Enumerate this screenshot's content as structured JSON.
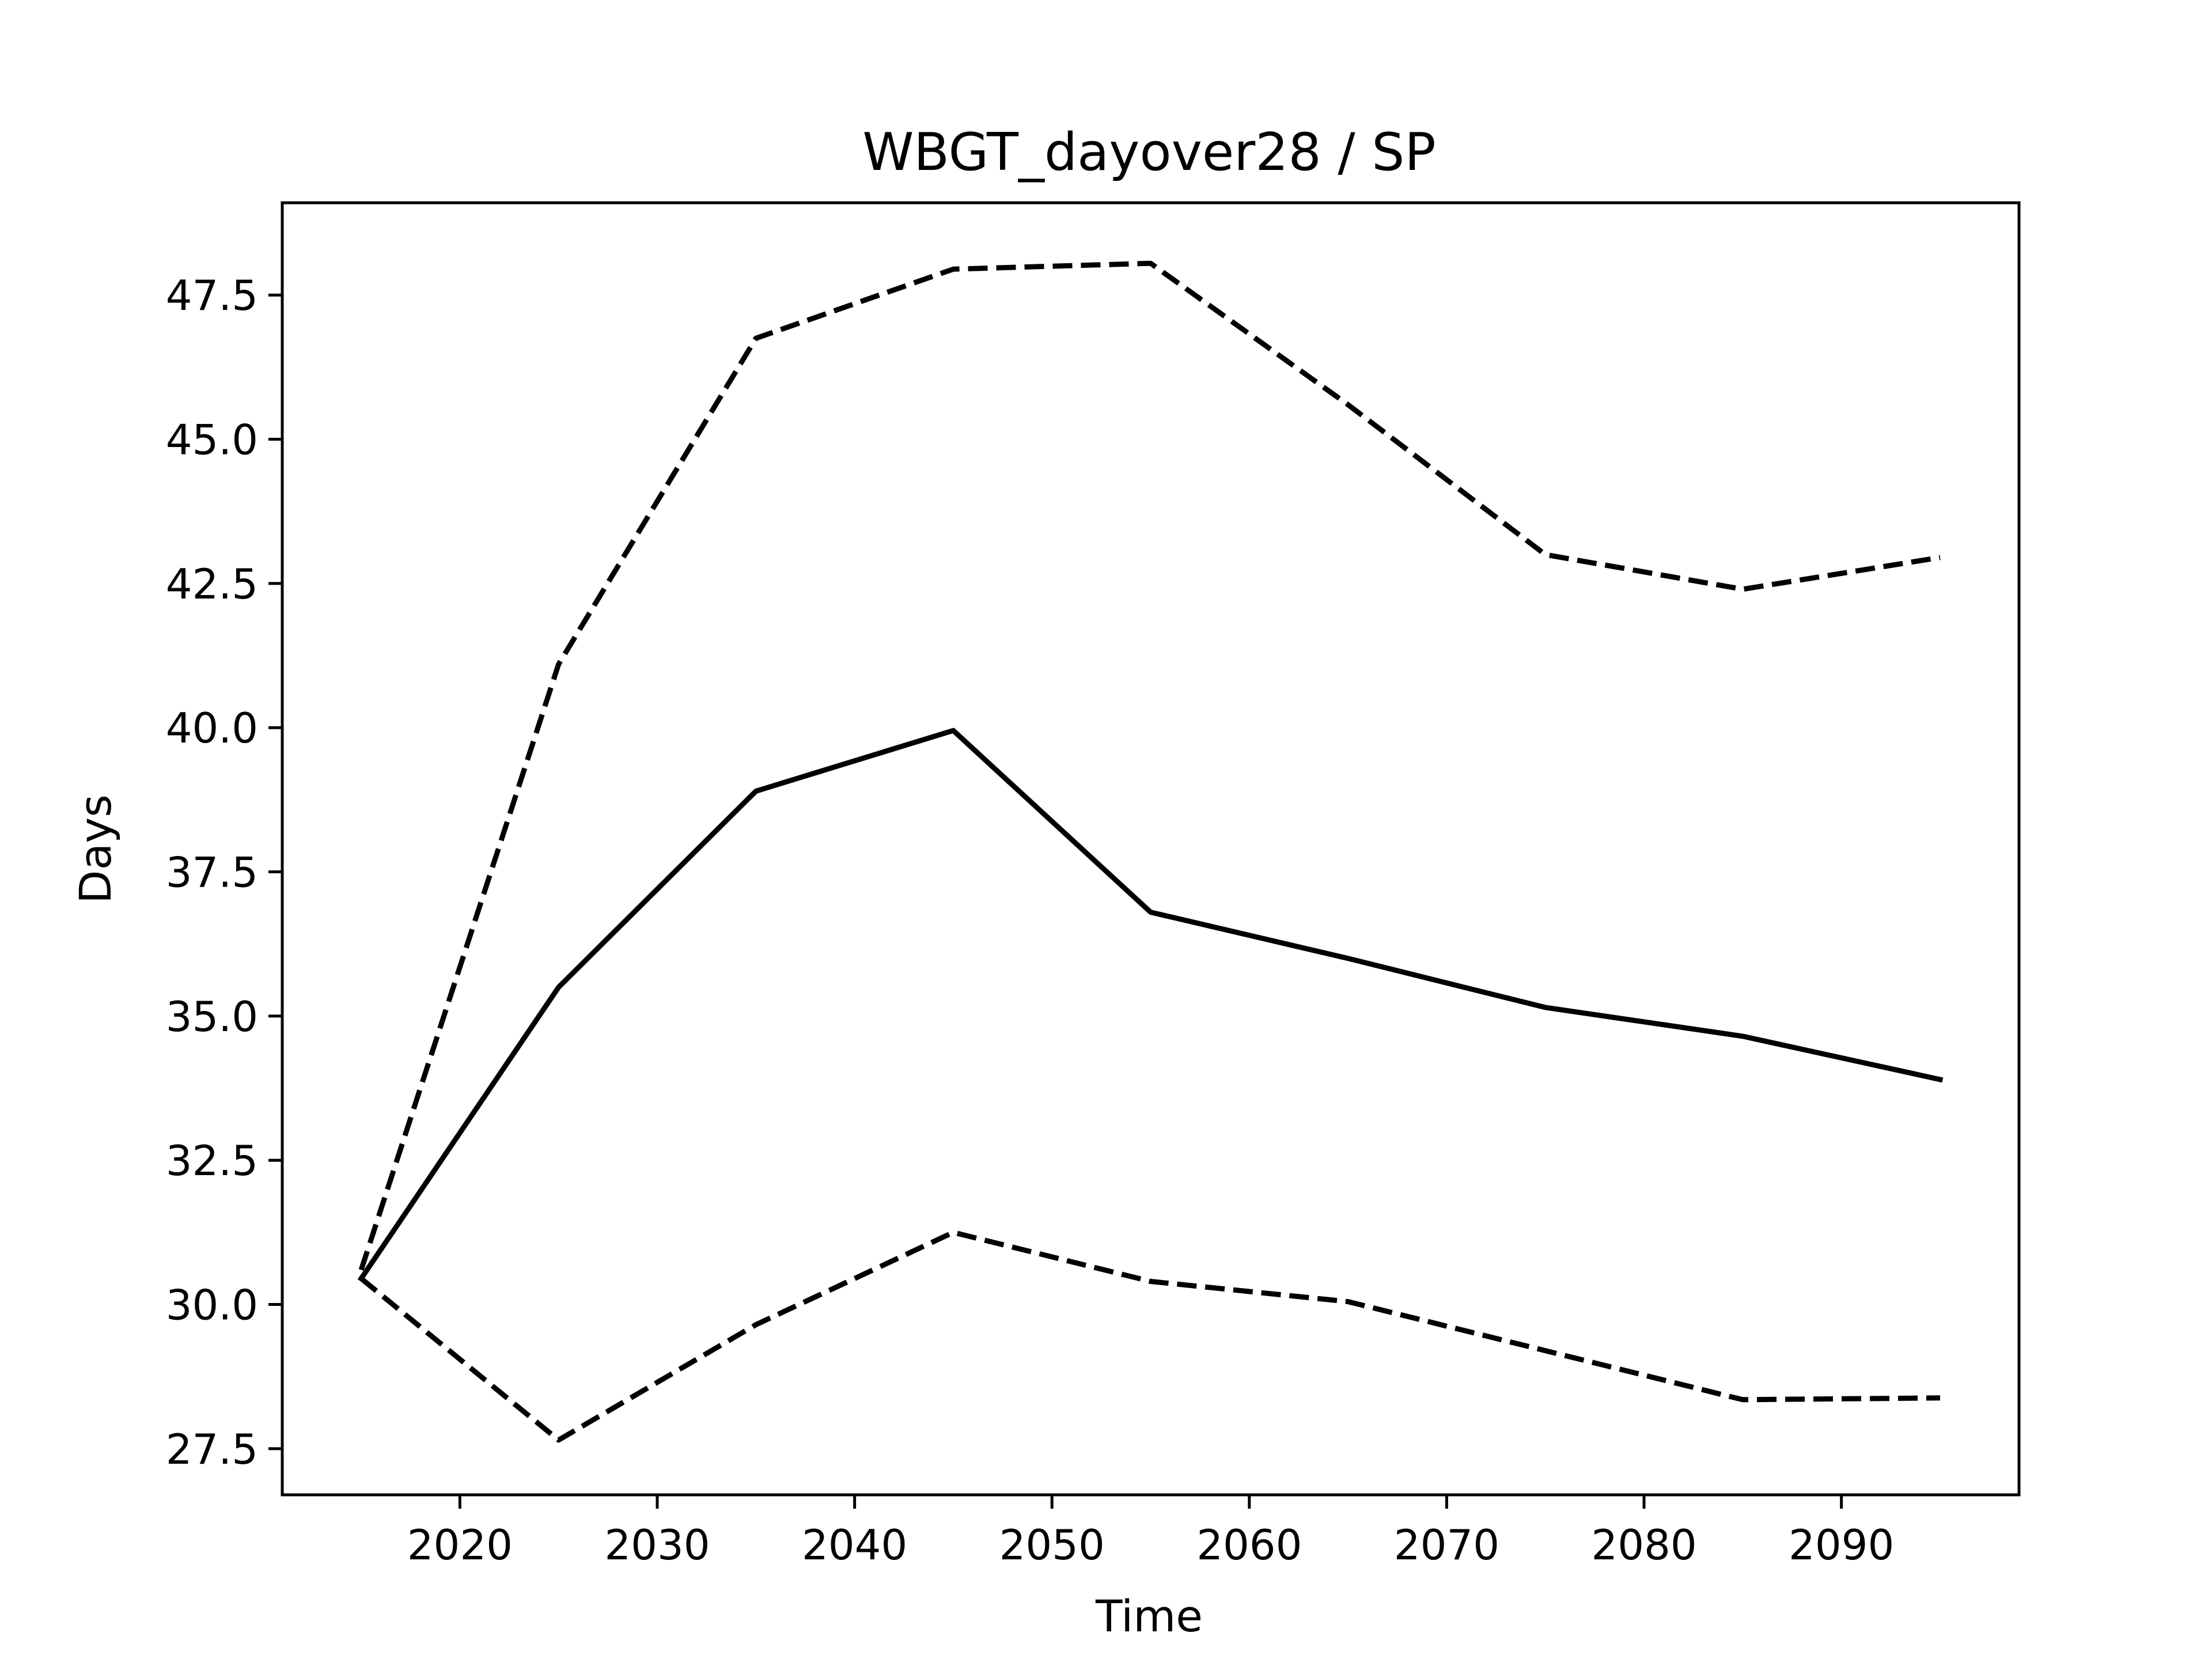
{
  "chart_data": {
    "type": "line",
    "title": "WBGT_dayover28 / SP",
    "xlabel": "Time",
    "ylabel": "Days",
    "xlim": [
      2011,
      2099
    ],
    "ylim": [
      26.7,
      49.1
    ],
    "x": [
      2015,
      2025,
      2035,
      2045,
      2055,
      2065,
      2075,
      2085,
      2095
    ],
    "xticks": [
      2020,
      2030,
      2040,
      2050,
      2060,
      2070,
      2080,
      2090
    ],
    "yticks": [
      27.5,
      30.0,
      32.5,
      35.0,
      37.5,
      40.0,
      42.5,
      45.0,
      47.5
    ],
    "ytick_labels": [
      "27.5",
      "30.0",
      "32.5",
      "35.0",
      "37.5",
      "40.0",
      "42.5",
      "45.0",
      "47.5"
    ],
    "grid": false,
    "series": [
      {
        "style": "solid",
        "color": "#000000",
        "values": [
          30.45,
          35.5,
          38.9,
          39.95,
          36.8,
          36.0,
          35.15,
          34.65,
          33.9
        ]
      },
      {
        "style": "dashed",
        "color": "#000000",
        "values": [
          30.6,
          41.1,
          46.75,
          47.95,
          48.05,
          45.6,
          43.0,
          42.4,
          42.95
        ]
      },
      {
        "style": "dashed",
        "color": "#000000",
        "values": [
          30.45,
          27.65,
          29.65,
          31.25,
          30.4,
          30.05,
          29.2,
          28.35,
          28.38
        ]
      }
    ]
  }
}
